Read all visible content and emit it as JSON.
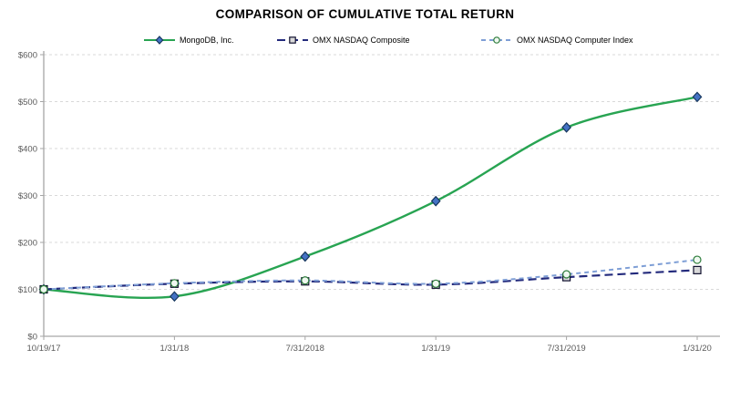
{
  "title": "COMPARISON OF CUMULATIVE TOTAL RETURN",
  "chart_data": {
    "type": "line",
    "x": [
      "10/19/17",
      "1/31/18",
      "7/31/2018",
      "1/31/19",
      "7/31/2019",
      "1/31/20"
    ],
    "series": [
      {
        "name": "MongoDB, Inc.",
        "values": [
          100,
          85,
          170,
          288,
          445,
          510
        ],
        "color": "#28A452",
        "width": 2.4,
        "dash": "solid",
        "marker": "diamond",
        "marker_fill": "#4472C4",
        "marker_stroke": "#17375E"
      },
      {
        "name": "OMX NASDAQ Composite",
        "values": [
          100,
          112,
          117,
          110,
          126,
          141
        ],
        "color": "#232A7C",
        "width": 2.2,
        "dash": "9 5",
        "marker": "square",
        "marker_fill": "#D9D9D9",
        "marker_stroke": "#10102E"
      },
      {
        "name": "OMX NASDAQ Computer Index",
        "values": [
          100,
          113,
          119,
          112,
          132,
          163
        ],
        "color": "#7F9FD6",
        "width": 2,
        "dash": "5 4",
        "marker": "circle",
        "marker_fill": "#EFF8F0",
        "marker_stroke": "#2E7D3C"
      }
    ],
    "ylim": [
      0,
      600
    ],
    "ytick_values": [
      0,
      100,
      200,
      300,
      400,
      500,
      600
    ],
    "ytick_labels": [
      "$0",
      "$100",
      "$200",
      "$300",
      "$400",
      "$500",
      "$600"
    ],
    "xlabel": "",
    "ylabel": "",
    "grid": "horizontal-dashed",
    "legend_position": "top"
  },
  "theme": {
    "background": "#FFFFFF",
    "title_color": "#000000",
    "grid_color": "#D9D9D9",
    "axis_color": "#A6A6A6",
    "tick_label_color": "#595959"
  }
}
